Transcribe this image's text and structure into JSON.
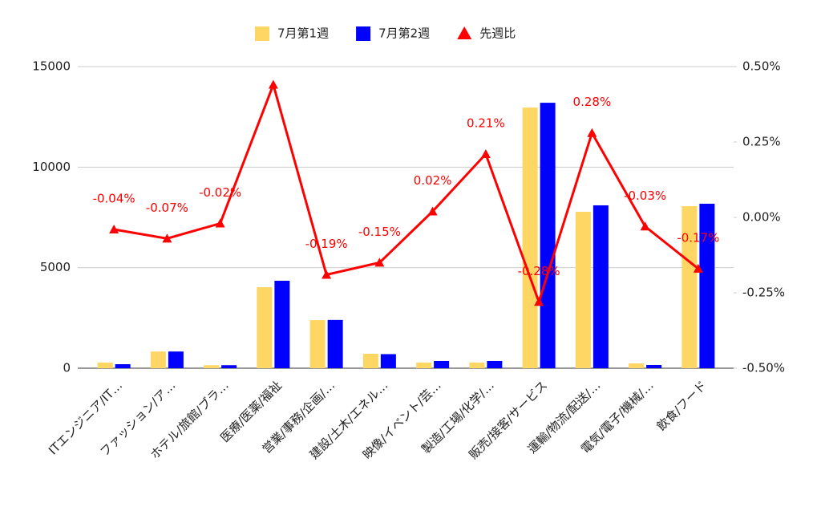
{
  "chart_data": {
    "type": "bar-line",
    "categories": [
      "ITエンジニア/IT…",
      "ファッション/ア…",
      "ホテル/旅館/ブラ…",
      "医療/医薬/福祉",
      "営業/事務/企画/…",
      "建設/土木/エネル…",
      "映像/イベント/芸…",
      "製造/工場/化学/…",
      "販売/接客/サービス",
      "運輸/物流/配送/…",
      "電気/電子/機械/…",
      "飲食/フード"
    ],
    "series": [
      {
        "name": "7月第1週",
        "color": "#fdd663",
        "values": [
          280,
          830,
          150,
          4030,
          2390,
          720,
          280,
          280,
          12960,
          7780,
          240,
          8060
        ]
      },
      {
        "name": "7月第2週",
        "color": "#0000ff",
        "values": [
          200,
          830,
          150,
          4350,
          2400,
          700,
          360,
          360,
          13200,
          8100,
          160,
          8180
        ]
      },
      {
        "name": "先週比",
        "color": "#ff0000",
        "axis": "y2",
        "values": [
          -0.04,
          -0.07,
          -0.02,
          0.44,
          -0.19,
          -0.15,
          0.02,
          0.21,
          -0.28,
          0.28,
          -0.03,
          -0.17
        ],
        "value_labels": [
          "-0.04%",
          "-0.07%",
          "-0.02%",
          null,
          "-0.19%",
          "-0.15%",
          "0.02%",
          "0.21%",
          "-0.28%",
          "0.28%",
          "-0.03%",
          "-0.17%"
        ]
      }
    ],
    "ylim": [
      0,
      15000
    ],
    "yticks": [
      0,
      5000,
      10000,
      15000
    ],
    "y2lim": [
      -0.5,
      0.5
    ],
    "y2ticks": [
      {
        "value": -0.5,
        "label": "-0.50%"
      },
      {
        "value": -0.25,
        "label": "-0.25%"
      },
      {
        "value": 0,
        "label": "0.00%"
      },
      {
        "value": 0.25,
        "label": "0.25%"
      },
      {
        "value": 0.5,
        "label": "0.50%"
      }
    ],
    "grid": true,
    "legend": "top"
  }
}
